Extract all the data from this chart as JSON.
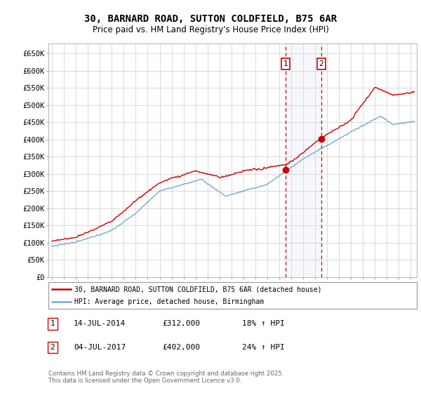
{
  "title": "30, BARNARD ROAD, SUTTON COLDFIELD, B75 6AR",
  "subtitle": "Price paid vs. HM Land Registry's House Price Index (HPI)",
  "ylim": [
    0,
    680000
  ],
  "xlim_start": 1994.7,
  "xlim_end": 2025.5,
  "purchase1_date": 2014.536,
  "purchase1_price": 312000,
  "purchase1_label": "1",
  "purchase2_date": 2017.503,
  "purchase2_price": 402000,
  "purchase2_label": "2",
  "legend_line1": "30, BARNARD ROAD, SUTTON COLDFIELD, B75 6AR (detached house)",
  "legend_line2": "HPI: Average price, detached house, Birmingham",
  "table_row1": [
    "1",
    "14-JUL-2014",
    "£312,000",
    "18% ↑ HPI"
  ],
  "table_row2": [
    "2",
    "04-JUL-2017",
    "£402,000",
    "24% ↑ HPI"
  ],
  "footer": "Contains HM Land Registry data © Crown copyright and database right 2025.\nThis data is licensed under the Open Government Licence v3.0.",
  "line_color_red": "#cc0000",
  "line_color_blue": "#77aacc",
  "fill_color": "#ddeeff",
  "marker_color": "#cc0000",
  "vline_color": "#cc0000",
  "background_color": "#ffffff",
  "grid_color": "#cccccc"
}
